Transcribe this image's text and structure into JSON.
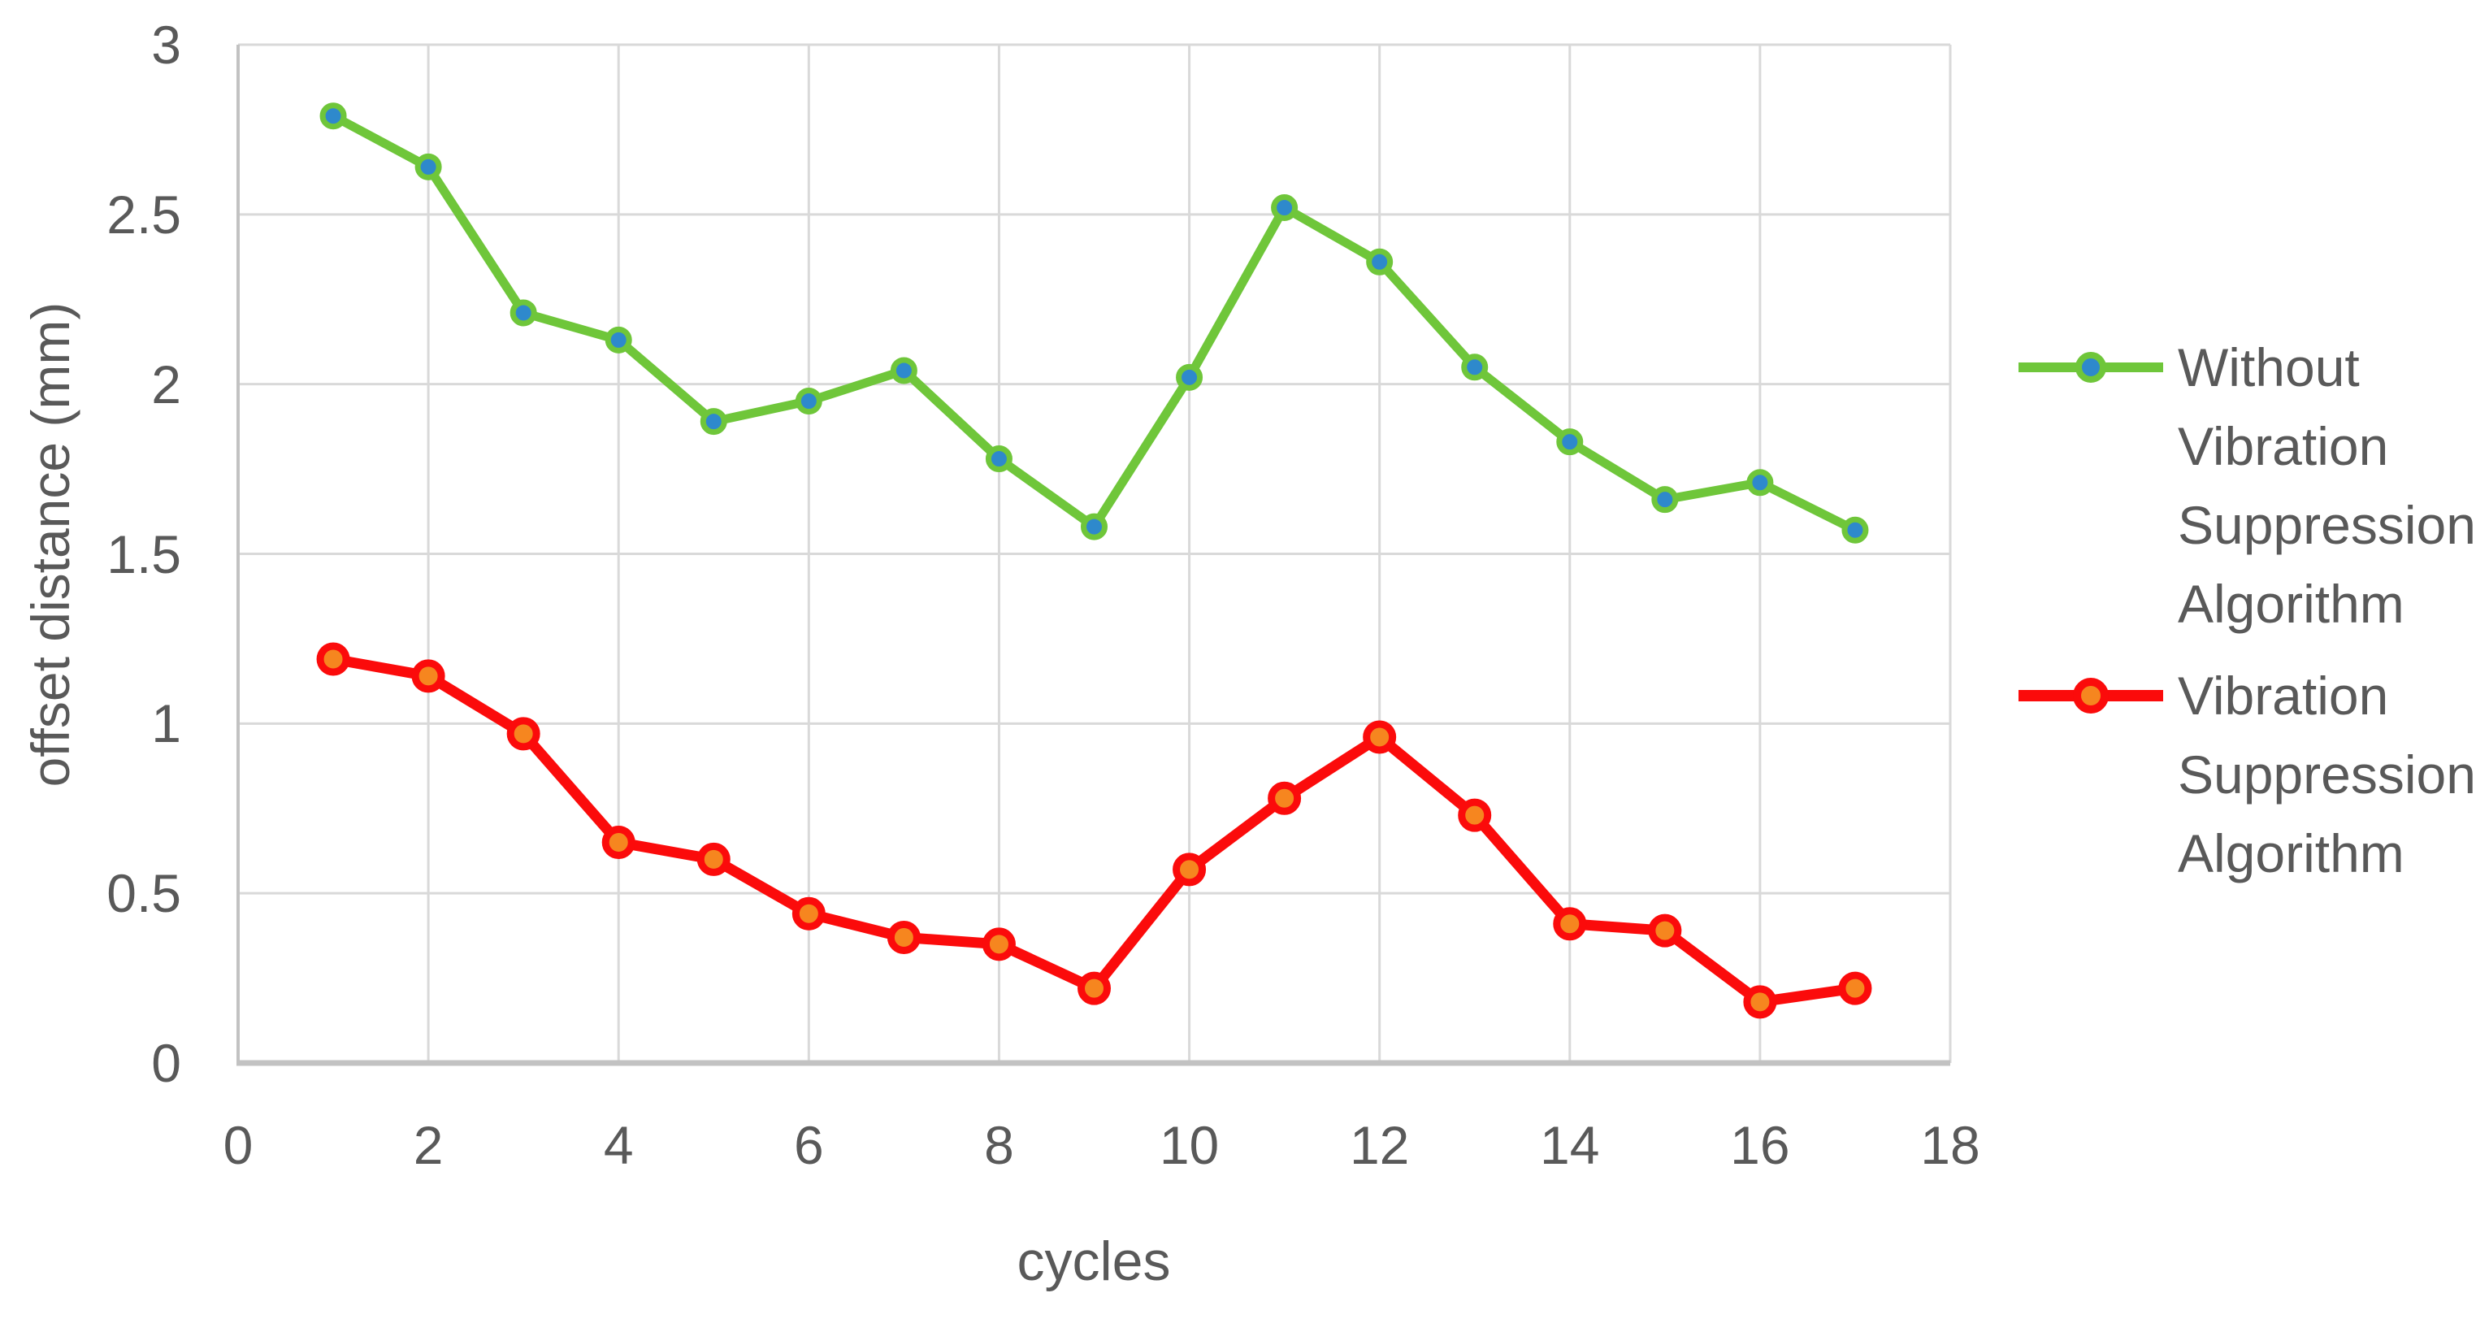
{
  "chart_data": {
    "type": "line",
    "title": "",
    "xlabel": "cycles",
    "ylabel": "offset distance (mm)",
    "x": [
      1,
      2,
      3,
      4,
      5,
      6,
      7,
      8,
      9,
      10,
      11,
      12,
      13,
      14,
      15,
      16,
      17
    ],
    "series": [
      {
        "name": "Without Vibration Suppression Algorithm",
        "label_lines": [
          "Without",
          "Vibration",
          "Suppression",
          "Algorithm"
        ],
        "values": [
          2.79,
          2.64,
          2.21,
          2.13,
          1.89,
          1.95,
          2.04,
          1.78,
          1.58,
          2.02,
          2.52,
          2.36,
          2.05,
          1.83,
          1.66,
          1.71,
          1.57
        ],
        "line_color": "#6FC63A",
        "marker_color": "#2E89CC"
      },
      {
        "name": "Vibration Suppression Algorithm",
        "label_lines": [
          "Vibration",
          "Suppression",
          "Algorithm"
        ],
        "values": [
          1.19,
          1.14,
          0.97,
          0.65,
          0.6,
          0.44,
          0.37,
          0.35,
          0.22,
          0.57,
          0.78,
          0.96,
          0.73,
          0.41,
          0.39,
          0.18,
          0.22
        ],
        "line_color": "#FB0B0B",
        "marker_color": "#F6861F"
      }
    ],
    "x_ticks": [
      0,
      2,
      4,
      6,
      8,
      10,
      12,
      14,
      16,
      18
    ],
    "y_ticks": [
      0,
      0.5,
      1,
      1.5,
      2,
      2.5,
      3
    ],
    "xlim": [
      0,
      18
    ],
    "ylim": [
      0,
      3
    ],
    "grid": true,
    "legend_position": "right"
  },
  "colors": {
    "text": "#595959",
    "gridline": "#D9D9D9",
    "axis_line": "#C2C2C2",
    "background": "#FFFFFF"
  }
}
